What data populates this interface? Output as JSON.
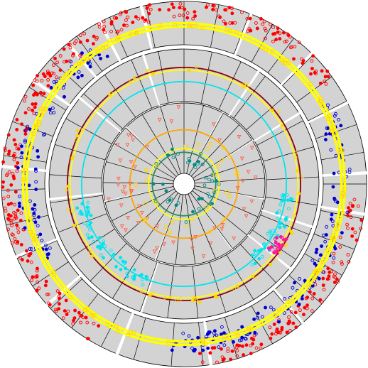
{
  "chart_data": {
    "type": "scatter",
    "layout": "circular",
    "title": "",
    "grid": true,
    "rings": [
      {
        "name": "",
        "sectors": [
          0,
          11,
          21,
          29,
          37,
          45,
          54,
          63,
          71,
          80,
          90,
          101,
          111,
          120,
          131,
          140,
          151,
          163,
          174,
          184,
          196,
          207,
          218,
          227,
          236,
          246,
          257,
          268,
          279,
          290,
          302,
          313,
          324,
          336,
          348
        ],
        "gaps": [
          [
            21,
            22
          ],
          [
            44,
            45
          ],
          [
            63,
            64
          ],
          [
            86,
            87
          ],
          [
            99,
            100
          ],
          [
            139,
            140
          ],
          [
            171,
            172
          ],
          [
            201,
            202
          ],
          [
            228,
            229
          ],
          [
            246,
            247
          ],
          [
            275,
            276
          ],
          [
            304,
            305
          ],
          [
            320,
            321
          ],
          [
            332,
            333
          ],
          [
            346,
            347
          ]
        ],
        "background": "#d3d3d3",
        "ylim": [
          0,
          10
        ],
        "series": [
          {
            "name": "",
            "color": "#ff0000",
            "marker": "circle",
            "spread": [
              6.0,
              10.0
            ],
            "count": 420,
            "ranges": [
              [
                0,
                55
              ],
              [
                95,
                175
              ],
              [
                210,
                360
              ]
            ]
          },
          {
            "name": "",
            "color": "#0000cc",
            "marker": "circle",
            "spread": [
              2.0,
              6.5
            ],
            "count": 260,
            "ranges": [
              [
                60,
                185
              ],
              [
                240,
                330
              ]
            ]
          },
          {
            "name": "",
            "color": "#ffff00",
            "marker": "line",
            "levels": [
              4.2,
              5.0
            ]
          },
          {
            "name": "",
            "color": "#ffd700",
            "marker": "square",
            "spread": [
              4.0,
              5.2
            ],
            "count": 120,
            "ranges": [
              [
                0,
                360
              ]
            ]
          }
        ]
      },
      {
        "name": "",
        "sectors": [
          0,
          12,
          25,
          37,
          49,
          62,
          74,
          87,
          99,
          112,
          124,
          137,
          149,
          162,
          174,
          187,
          199,
          212,
          224,
          237,
          249,
          262,
          274,
          287,
          299,
          312,
          324,
          337,
          349
        ],
        "gaps": [
          [
            33,
            34
          ],
          [
            58,
            59
          ],
          [
            108,
            109
          ],
          [
            128,
            129
          ],
          [
            198,
            199
          ],
          [
            263,
            264
          ],
          [
            309,
            310
          ],
          [
            342,
            343
          ]
        ],
        "background": "#d3d3d3",
        "ylim": [
          0,
          10
        ],
        "series": [
          {
            "name": "",
            "color": "#8b0000",
            "marker": "line",
            "levels": [
              6.5
            ]
          },
          {
            "name": "",
            "color": "#00e5ee",
            "marker": "line",
            "levels": [
              3.8
            ]
          },
          {
            "name": "",
            "color": "#ffff00",
            "marker": "line",
            "levels": [
              6.0
            ]
          },
          {
            "name": "",
            "color": "#00e5ee",
            "marker": "circle",
            "spread": [
              2.8,
              5.2
            ],
            "count": 110,
            "ranges": [
              [
                95,
                140
              ],
              [
                200,
                260
              ]
            ]
          },
          {
            "name": "",
            "color": "#ff1493",
            "marker": "circle",
            "spread": [
              4.5,
              6.5
            ],
            "count": 25,
            "ranges": [
              [
                118,
                128
              ]
            ]
          },
          {
            "name": "",
            "color": "#ffd700",
            "marker": "circle",
            "spread": [
              6.0,
              7.0
            ],
            "count": 60,
            "ranges": [
              [
                0,
                360
              ]
            ]
          }
        ]
      },
      {
        "name": "",
        "sectors": [
          0,
          14,
          29,
          43,
          57,
          72,
          86,
          100,
          114,
          129,
          143,
          157,
          172,
          186,
          200,
          214,
          229,
          243,
          257,
          271,
          286,
          300,
          314,
          329,
          343
        ],
        "gaps": [
          [
            28,
            29
          ],
          [
            57,
            58
          ],
          [
            100,
            101
          ],
          [
            143,
            144
          ],
          [
            200,
            201
          ],
          [
            257,
            258
          ],
          [
            314,
            315
          ]
        ],
        "background": "#d3d3d3",
        "ylim": [
          0,
          10
        ],
        "series": [
          {
            "name": "",
            "color": "#ffa500",
            "marker": "line",
            "levels": [
              6.2
            ]
          },
          {
            "name": "",
            "color": "#2e8b57",
            "marker": "line",
            "levels": [
              3.0
            ]
          },
          {
            "name": "",
            "color": "#ffff00",
            "marker": "line",
            "levels": [
              3.5
            ]
          },
          {
            "name": "",
            "color": "#ff6347",
            "marker": "triangle",
            "spread": [
              5.5,
              9.5
            ],
            "count": 55,
            "ranges": [
              [
                0,
                360
              ]
            ]
          },
          {
            "name": "",
            "color": "#008b8b",
            "marker": "circle",
            "spread": [
              1.2,
              4.2
            ],
            "count": 40,
            "ranges": [
              [
                0,
                360
              ]
            ]
          },
          {
            "name": "",
            "color": "#ffd700",
            "marker": "square",
            "spread": [
              3.0,
              6.5
            ],
            "count": 30,
            "ranges": [
              [
                0,
                360
              ]
            ]
          }
        ]
      }
    ]
  }
}
